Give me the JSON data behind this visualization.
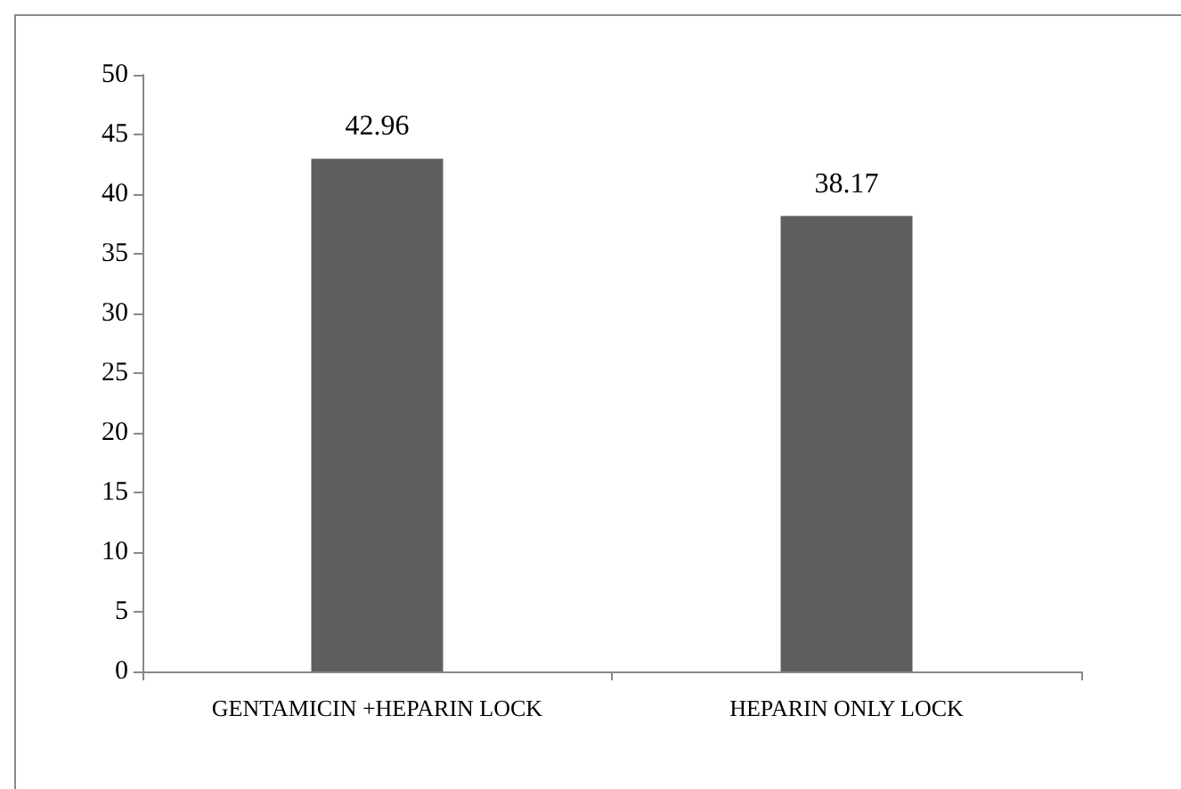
{
  "chart_data": {
    "type": "bar",
    "categories": [
      "GENTAMICIN +HEPARIN LOCK",
      "HEPARIN ONLY LOCK"
    ],
    "values": [
      42.96,
      38.17
    ],
    "color": "#5f5f5f",
    "ylim": [
      0,
      50
    ],
    "yticks": [
      0,
      5,
      10,
      15,
      20,
      25,
      30,
      35,
      40,
      45,
      50
    ],
    "grid": false,
    "data_labels": true
  }
}
